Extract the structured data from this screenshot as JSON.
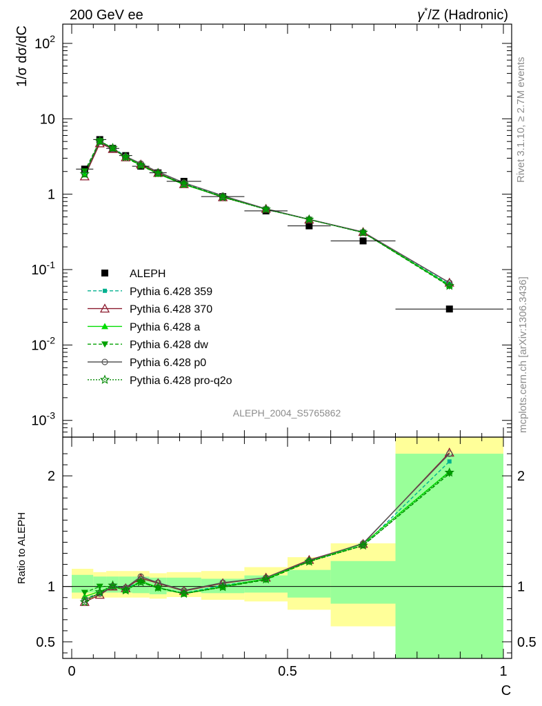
{
  "header": {
    "left": "200 GeV ee",
    "right_prefix": "γ",
    "right_sup": "*",
    "right_rest": "/Z (Hadronic)"
  },
  "side_labels": {
    "rivet": "Rivet 3.1.10, ≥ 2.7M events",
    "mcplots": "mcplots.cern.ch [arXiv:1306.3436]"
  },
  "analysis_id": "ALEPH_2004_S5765862",
  "colors": {
    "data": "#000000",
    "p359": "#00b08f",
    "p370": "#8b1a2e",
    "pa": "#00dd00",
    "pdw": "#00a000",
    "pp0": "#555555",
    "pproq2o": "#008800",
    "band_inner": "#99ff99",
    "band_outer": "#ffff99"
  },
  "chart_data": [
    {
      "type": "line",
      "ylabel": "1/σ  dσ/dC",
      "yscale": "log",
      "ylim": [
        0.0006,
        180
      ],
      "xlim": [
        -0.02,
        1.0
      ],
      "x": [
        0.03,
        0.065,
        0.095,
        0.125,
        0.16,
        0.2,
        0.26,
        0.35,
        0.45,
        0.55,
        0.675,
        0.875
      ],
      "x_errors": [
        0.02,
        0.015,
        0.015,
        0.015,
        0.02,
        0.02,
        0.04,
        0.05,
        0.05,
        0.05,
        0.075,
        0.125
      ],
      "y_ticks": [
        "10^-3",
        "10^-2",
        "10^-1",
        "1",
        "10",
        "10^2"
      ],
      "series": [
        {
          "name": "ALEPH",
          "key": "data",
          "marker": "square",
          "values": [
            2.15,
            5.3,
            4.05,
            3.25,
            2.35,
            1.92,
            1.48,
            0.93,
            0.6,
            0.38,
            0.24,
            0.03
          ]
        },
        {
          "name": "Pythia 6.428 359",
          "key": "p359",
          "marker": "small-square",
          "dash": "5,3",
          "values": [
            1.95,
            4.95,
            4.1,
            3.2,
            2.45,
            1.9,
            1.39,
            0.94,
            0.63,
            0.465,
            0.31,
            0.064
          ]
        },
        {
          "name": "Pythia 6.428 370",
          "key": "p370",
          "marker": "open-triangle",
          "dash": "",
          "values": [
            1.72,
            4.72,
            3.98,
            3.08,
            2.48,
            1.91,
            1.36,
            0.91,
            0.64,
            0.46,
            0.315,
            0.067
          ]
        },
        {
          "name": "Pythia 6.428 a",
          "key": "pa",
          "marker": "triangle",
          "dash": "",
          "values": [
            1.82,
            5.05,
            4.08,
            3.1,
            2.45,
            1.86,
            1.34,
            0.925,
            0.635,
            0.462,
            0.312,
            0.062
          ]
        },
        {
          "name": "Pythia 6.428 dw",
          "key": "pdw",
          "marker": "triangle-down",
          "dash": "5,3",
          "values": [
            2.02,
            5.1,
            4.05,
            3.05,
            2.4,
            1.86,
            1.37,
            0.92,
            0.63,
            0.462,
            0.31,
            0.06
          ]
        },
        {
          "name": "Pythia 6.428 p0",
          "key": "pp0",
          "marker": "circle",
          "dash": "",
          "values": [
            1.85,
            4.95,
            4.0,
            3.18,
            2.55,
            1.98,
            1.42,
            0.955,
            0.64,
            0.465,
            0.315,
            0.067
          ]
        },
        {
          "name": "Pythia 6.428 pro-q2o",
          "key": "pproq2o",
          "marker": "star",
          "dash": "2,2",
          "values": [
            1.85,
            5.05,
            4.1,
            3.1,
            2.4,
            1.9,
            1.36,
            0.91,
            0.63,
            0.462,
            0.31,
            0.061
          ]
        }
      ]
    },
    {
      "type": "line",
      "ylabel": "Ratio to ALEPH",
      "xlabel": "C",
      "ylim": [
        0.35,
        2.35
      ],
      "x_ticks": [
        "0",
        "0.5",
        "1"
      ],
      "y_ticks": [
        "0.5",
        "1",
        "2"
      ],
      "bands": [
        {
          "x0": 0.0,
          "x1": 0.05,
          "inner": [
            0.945,
            1.105
          ],
          "outer": [
            0.89,
            1.16
          ]
        },
        {
          "x0": 0.05,
          "x1": 0.08,
          "inner": [
            0.945,
            1.09
          ],
          "outer": [
            0.9,
            1.13
          ]
        },
        {
          "x0": 0.08,
          "x1": 0.11,
          "inner": [
            0.945,
            1.09
          ],
          "outer": [
            0.9,
            1.14
          ]
        },
        {
          "x0": 0.11,
          "x1": 0.14,
          "inner": [
            0.945,
            1.09
          ],
          "outer": [
            0.9,
            1.14
          ]
        },
        {
          "x0": 0.14,
          "x1": 0.18,
          "inner": [
            0.94,
            1.09
          ],
          "outer": [
            0.9,
            1.14
          ]
        },
        {
          "x0": 0.18,
          "x1": 0.22,
          "inner": [
            0.93,
            1.08
          ],
          "outer": [
            0.89,
            1.12
          ]
        },
        {
          "x0": 0.22,
          "x1": 0.3,
          "inner": [
            0.95,
            1.08
          ],
          "outer": [
            0.905,
            1.13
          ]
        },
        {
          "x0": 0.3,
          "x1": 0.4,
          "inner": [
            0.94,
            1.07
          ],
          "outer": [
            0.88,
            1.14
          ]
        },
        {
          "x0": 0.4,
          "x1": 0.5,
          "inner": [
            0.945,
            1.1
          ],
          "outer": [
            0.865,
            1.175
          ]
        },
        {
          "x0": 0.5,
          "x1": 0.6,
          "inner": [
            0.9,
            1.15
          ],
          "outer": [
            0.79,
            1.265
          ]
        },
        {
          "x0": 0.6,
          "x1": 0.75,
          "inner": [
            0.845,
            1.23
          ],
          "outer": [
            0.64,
            1.39
          ]
        },
        {
          "x0": 0.75,
          "x1": 1.0,
          "inner": [
            0.0,
            2.2
          ],
          "outer": [
            0.0,
            2.4
          ]
        }
      ],
      "series": [
        {
          "name": "Pythia 6.428 359",
          "key": "p359",
          "values": [
            0.895,
            0.935,
            1.01,
            0.985,
            1.045,
            0.99,
            0.94,
            1.01,
            1.065,
            1.24,
            1.37,
            2.13
          ]
        },
        {
          "name": "Pythia 6.428 370",
          "key": "p370",
          "values": [
            0.86,
            0.925,
            1.0,
            0.985,
            1.075,
            1.03,
            0.96,
            1.03,
            1.08,
            1.24,
            1.385,
            2.21
          ]
        },
        {
          "name": "Pythia 6.428 a",
          "key": "pa",
          "values": [
            0.91,
            0.955,
            1.0,
            0.965,
            1.05,
            0.99,
            0.935,
            1.0,
            1.07,
            1.23,
            1.385,
            2.04
          ]
        },
        {
          "name": "Pythia 6.428 dw",
          "key": "pdw",
          "values": [
            0.945,
            1.0,
            1.0,
            0.97,
            1.04,
            0.985,
            0.935,
            0.995,
            1.06,
            1.225,
            1.37,
            2.02
          ]
        },
        {
          "name": "Pythia 6.428 p0",
          "key": "pp0",
          "values": [
            0.88,
            0.935,
            1.0,
            0.99,
            1.09,
            1.035,
            0.965,
            1.035,
            1.08,
            1.235,
            1.39,
            2.2
          ]
        },
        {
          "name": "Pythia 6.428 pro-q2o",
          "key": "pproq2o",
          "values": [
            0.86,
            0.95,
            1.01,
            0.965,
            1.04,
            0.99,
            0.935,
            0.995,
            1.065,
            1.225,
            1.37,
            2.03
          ]
        }
      ]
    }
  ]
}
